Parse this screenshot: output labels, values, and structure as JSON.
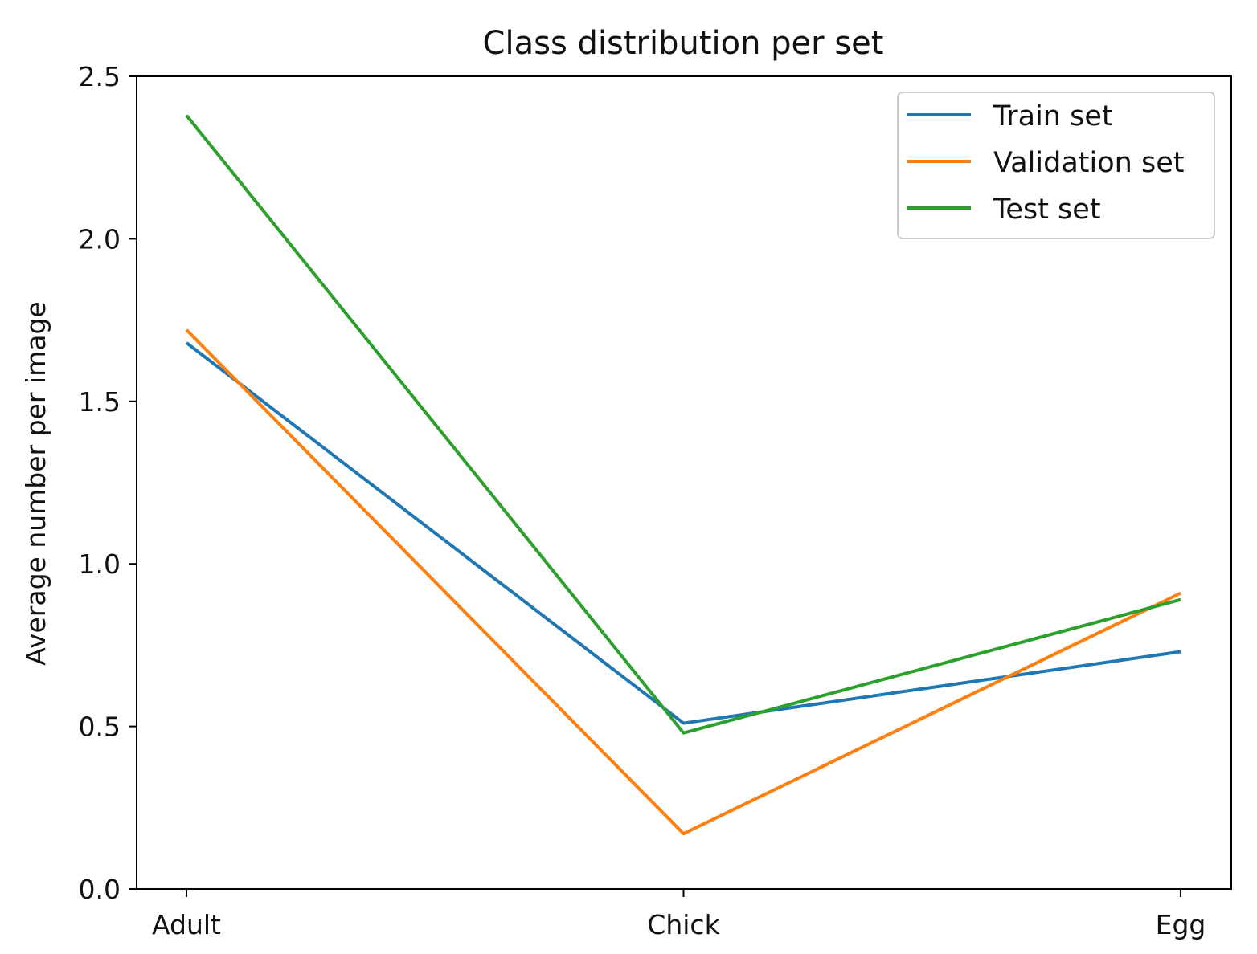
{
  "chart_data": {
    "type": "line",
    "title": "Class distribution per set",
    "xlabel": "",
    "ylabel": "Average number per image",
    "categories": [
      "Adult",
      "Chick",
      "Egg"
    ],
    "ylim": [
      0,
      2.5
    ],
    "yticks": [
      0.0,
      0.5,
      1.0,
      1.5,
      2.0,
      2.5
    ],
    "ytick_labels": [
      "0.0",
      "0.5",
      "1.0",
      "1.5",
      "2.0",
      "2.5"
    ],
    "grid": false,
    "legend_position": "top-right",
    "series": [
      {
        "name": "Train set",
        "color": "#1f77b4",
        "values": [
          1.68,
          0.51,
          0.73
        ]
      },
      {
        "name": "Validation set",
        "color": "#ff7f0e",
        "values": [
          1.72,
          0.17,
          0.91
        ]
      },
      {
        "name": "Test set",
        "color": "#2ca02c",
        "values": [
          2.38,
          0.48,
          0.89
        ]
      }
    ]
  }
}
